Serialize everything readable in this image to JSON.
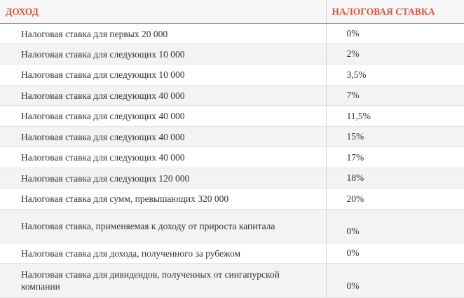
{
  "table": {
    "header": [
      "ДОХОД",
      "НАЛОГОВАЯ СТАВКА"
    ],
    "rows": [
      [
        "Налоговая ставка для первых 20 000",
        "0%"
      ],
      [
        "Налоговая ставка для следующих 10 000",
        "2%"
      ],
      [
        "Налоговая ставка для следующих 10 000",
        "3,5%"
      ],
      [
        "Налоговая ставка для следующих 40 000",
        "7%"
      ],
      [
        "Налоговая ставка для следующих 40 000",
        "11,5%"
      ],
      [
        "Налоговая ставка для следующих 40 000",
        "15%"
      ],
      [
        "Налоговая ставка для следующих 40 000",
        "17%"
      ],
      [
        "Налоговая ставка для следующих 120 000",
        "18%"
      ],
      [
        "Налоговая ставка для сумм, превышающих 320 000",
        "20%"
      ],
      [
        "Налоговая ставка, применяемая к доходу от прироста капитала",
        "0%"
      ],
      [
        "Налоговая ставка для дохода, полученного за рубежом",
        "0%"
      ],
      [
        "Налоговая ставка для дивидендов, полученных от сингапурской компании",
        "0%"
      ]
    ]
  }
}
